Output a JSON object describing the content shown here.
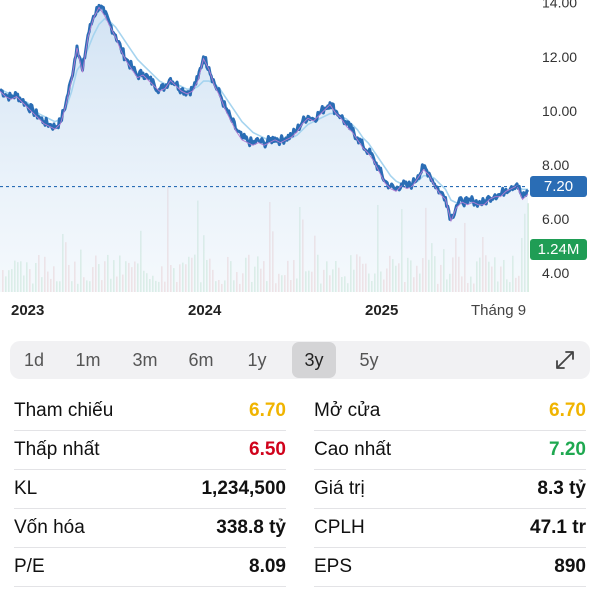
{
  "chart_data": {
    "type": "line",
    "x_labels": [
      "2023",
      "2024",
      "2025",
      "Tháng 9"
    ],
    "y_ticks": [
      "4.00",
      "6.00",
      "8.00",
      "10.00",
      "12.00",
      "14.00"
    ],
    "ylim": [
      3.3,
      14.1
    ],
    "price_label": "7.20",
    "volume_label": "1.24M",
    "price": [
      10.8,
      10.6,
      10.5,
      10.6,
      10.4,
      10.2,
      10.0,
      9.8,
      9.6,
      9.5,
      9.4,
      9.6,
      10.3,
      11.2,
      12.4,
      11.5,
      12.8,
      13.5,
      13.9,
      13.6,
      13.2,
      12.8,
      12.3,
      11.9,
      11.6,
      11.3,
      11.4,
      11.2,
      11.0,
      10.8,
      10.9,
      11.2,
      11.0,
      10.8,
      10.7,
      10.8,
      11.2,
      12.0,
      11.6,
      11.0,
      10.6,
      10.1,
      9.7,
      9.3,
      9.0,
      8.9,
      8.8,
      8.9,
      8.8,
      8.9,
      9.0,
      8.9,
      9.0,
      9.1,
      9.3,
      9.6,
      9.8,
      9.7,
      9.9,
      10.1,
      10.3,
      10.0,
      9.8,
      9.5,
      9.3,
      9.0,
      8.7,
      8.5,
      8.2,
      7.8,
      7.4,
      7.2,
      7.1,
      7.3,
      7.2,
      7.3,
      7.6,
      7.9,
      7.7,
      7.3,
      7.0,
      6.8,
      6.0,
      6.5,
      6.7,
      6.6,
      6.7,
      6.6,
      6.6,
      6.8,
      6.9,
      6.9,
      7.1,
      7.2,
      7.3,
      6.8,
      7.0
    ],
    "ma": [
      10.8,
      10.7,
      10.6,
      10.5,
      10.4,
      10.3,
      10.1,
      9.9,
      9.8,
      9.7,
      9.6,
      9.7,
      10.1,
      10.7,
      11.5,
      11.8,
      12.3,
      12.8,
      13.2,
      13.4,
      13.3,
      13.1,
      12.8,
      12.5,
      12.2,
      11.9,
      11.7,
      11.5,
      11.3,
      11.1,
      11.0,
      11.0,
      11.0,
      10.9,
      10.8,
      10.8,
      10.9,
      11.1,
      11.1,
      11.0,
      10.8,
      10.5,
      10.2,
      9.9,
      9.6,
      9.4,
      9.2,
      9.1,
      9.0,
      8.9,
      8.9,
      8.9,
      9.0,
      9.0,
      9.1,
      9.3,
      9.5,
      9.6,
      9.7,
      9.8,
      9.9,
      9.9,
      9.8,
      9.7,
      9.5,
      9.3,
      9.0,
      8.8,
      8.5,
      8.2,
      7.9,
      7.6,
      7.4,
      7.3,
      7.3,
      7.3,
      7.4,
      7.6,
      7.6,
      7.5,
      7.3,
      7.1,
      6.7,
      6.6,
      6.6,
      6.6,
      6.6,
      6.6,
      6.6,
      6.7,
      6.8,
      6.9,
      7.0,
      7.1,
      7.2,
      7.1,
      7.1
    ]
  },
  "tabs": [
    "1d",
    "1m",
    "3m",
    "6m",
    "1y",
    "3y",
    "5y"
  ],
  "active_tab": "3y",
  "icons": {
    "expand": "expand-diagonal-icon"
  },
  "stats": [
    {
      "left": {
        "label": "Tham chiếu",
        "value": "6.70",
        "color": "#f0b400"
      },
      "right": {
        "label": "Mở cửa",
        "value": "6.70",
        "color": "#f0b400"
      }
    },
    {
      "left": {
        "label": "Thấp nhất",
        "value": "6.50",
        "color": "#d0021b"
      },
      "right": {
        "label": "Cao nhất",
        "value": "7.20",
        "color": "#1fa850"
      }
    },
    {
      "left": {
        "label": "KL",
        "value": "1,234,500",
        "color": "#111111"
      },
      "right": {
        "label": "Giá trị",
        "value": "8.3 tỷ",
        "color": "#111111"
      }
    },
    {
      "left": {
        "label": "Vốn hóa",
        "value": "338.8 tỷ",
        "color": "#111111"
      },
      "right": {
        "label": "CPLH",
        "value": "47.1 tr",
        "color": "#111111"
      }
    },
    {
      "left": {
        "label": "P/E",
        "value": "8.09",
        "color": "#111111"
      },
      "right": {
        "label": "EPS",
        "value": "890",
        "color": "#111111"
      }
    }
  ],
  "colors": {
    "price_line": "#2a6db5",
    "ma_line": "#9fd0ee",
    "area": "#dbe9f6",
    "price_badge": "#2a6db5",
    "volume_badge": "#1f9d55"
  }
}
